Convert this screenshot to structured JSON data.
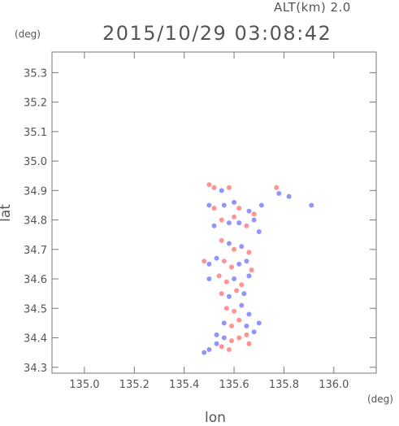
{
  "header": {
    "altitude_label": "ALT(km) 2.0",
    "timestamp": "2015/10/29 03:08:42"
  },
  "axes": {
    "x_unit": "(deg)",
    "y_unit": "(deg)",
    "x_label": "lon",
    "y_label": "lat"
  },
  "chart_data": {
    "type": "scatter",
    "title": "2015/10/29 03:08:42",
    "subtitle": "ALT(km) 2.0",
    "xlabel": "lon",
    "ylabel": "lat",
    "xlim": [
      134.87,
      136.17
    ],
    "ylim": [
      34.28,
      35.37
    ],
    "x_ticks": [
      135.0,
      135.2,
      135.4,
      135.6,
      135.8,
      136.0
    ],
    "y_ticks": [
      34.3,
      34.4,
      34.5,
      34.6,
      34.7,
      34.8,
      34.9,
      35.0,
      35.1,
      35.2,
      35.3
    ],
    "x_tick_labels": [
      "135.0",
      "135.2",
      "135.4",
      "135.6",
      "135.8",
      "136.0"
    ],
    "y_tick_labels": [
      "34.3",
      "34.4",
      "34.5",
      "34.6",
      "34.7",
      "34.8",
      "34.9",
      "35.0",
      "35.1",
      "35.2",
      "35.3"
    ],
    "grid": false,
    "colors": {
      "positive": "#ff8080",
      "negative": "#8080ff",
      "axis": "#777777"
    },
    "series": [
      {
        "values": [
          [
            135.5,
            34.92,
            1
          ],
          [
            135.52,
            34.91,
            1
          ],
          [
            135.55,
            34.9,
            -1
          ],
          [
            135.58,
            34.91,
            1
          ],
          [
            135.77,
            34.91,
            1
          ],
          [
            135.78,
            34.89,
            -1
          ],
          [
            135.82,
            34.88,
            -1
          ],
          [
            135.91,
            34.85,
            -1
          ],
          [
            135.5,
            34.85,
            -1
          ],
          [
            135.52,
            34.84,
            1
          ],
          [
            135.56,
            34.85,
            -1
          ],
          [
            135.6,
            34.86,
            -1
          ],
          [
            135.62,
            34.84,
            1
          ],
          [
            135.66,
            34.83,
            -1
          ],
          [
            135.68,
            34.82,
            1
          ],
          [
            135.71,
            34.85,
            -1
          ],
          [
            135.52,
            34.78,
            -1
          ],
          [
            135.55,
            34.8,
            1
          ],
          [
            135.58,
            34.79,
            -1
          ],
          [
            135.6,
            34.81,
            1
          ],
          [
            135.62,
            34.79,
            -1
          ],
          [
            135.65,
            34.78,
            1
          ],
          [
            135.68,
            34.8,
            -1
          ],
          [
            135.7,
            34.76,
            -1
          ],
          [
            135.55,
            34.73,
            1
          ],
          [
            135.58,
            34.72,
            -1
          ],
          [
            135.6,
            34.7,
            1
          ],
          [
            135.63,
            34.71,
            -1
          ],
          [
            135.66,
            34.69,
            1
          ],
          [
            135.48,
            34.66,
            1
          ],
          [
            135.5,
            34.65,
            -1
          ],
          [
            135.53,
            34.67,
            -1
          ],
          [
            135.56,
            34.66,
            1
          ],
          [
            135.59,
            34.64,
            1
          ],
          [
            135.62,
            34.65,
            -1
          ],
          [
            135.65,
            34.66,
            -1
          ],
          [
            135.67,
            34.63,
            1
          ],
          [
            135.5,
            34.6,
            -1
          ],
          [
            135.54,
            34.61,
            1
          ],
          [
            135.57,
            34.59,
            1
          ],
          [
            135.6,
            34.6,
            -1
          ],
          [
            135.63,
            34.58,
            1
          ],
          [
            135.66,
            34.61,
            -1
          ],
          [
            135.55,
            34.55,
            1
          ],
          [
            135.58,
            34.54,
            -1
          ],
          [
            135.61,
            34.56,
            1
          ],
          [
            135.64,
            34.55,
            -1
          ],
          [
            135.57,
            34.5,
            1
          ],
          [
            135.6,
            34.49,
            1
          ],
          [
            135.63,
            34.51,
            -1
          ],
          [
            135.66,
            34.48,
            -1
          ],
          [
            135.56,
            34.45,
            -1
          ],
          [
            135.59,
            34.44,
            1
          ],
          [
            135.62,
            34.46,
            1
          ],
          [
            135.65,
            34.44,
            -1
          ],
          [
            135.68,
            34.42,
            -1
          ],
          [
            135.53,
            34.41,
            -1
          ],
          [
            135.56,
            34.4,
            -1
          ],
          [
            135.59,
            34.39,
            1
          ],
          [
            135.62,
            34.4,
            1
          ],
          [
            135.65,
            34.41,
            1
          ],
          [
            135.55,
            34.37,
            1
          ],
          [
            135.58,
            34.36,
            1
          ],
          [
            135.48,
            34.35,
            -1
          ],
          [
            135.5,
            34.36,
            -1
          ],
          [
            135.53,
            34.38,
            -1
          ],
          [
            135.7,
            34.45,
            -1
          ],
          [
            135.66,
            34.38,
            1
          ]
        ]
      }
    ]
  }
}
